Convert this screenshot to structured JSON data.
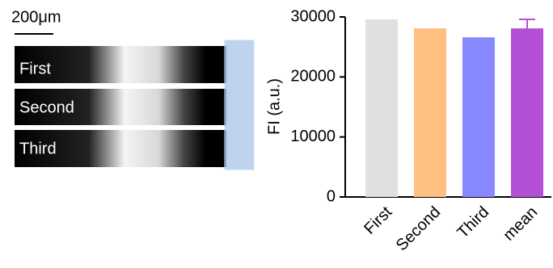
{
  "panels": {
    "scale_bar": "200μm",
    "labels": [
      "First",
      "Second",
      "Third"
    ]
  },
  "chart_data": {
    "type": "bar",
    "y_label": "FI (a.u.)",
    "categories": [
      "First",
      "Second",
      "Third",
      "mean"
    ],
    "values": [
      29600,
      28100,
      26600,
      28100
    ],
    "errors": [
      null,
      null,
      null,
      1500
    ],
    "colors": [
      "#e0e0e0",
      "#ffbf80",
      "#8888ff",
      "#b450d8"
    ],
    "ylim": [
      0,
      30000
    ],
    "yticks": [
      0,
      10000,
      20000,
      30000
    ]
  }
}
